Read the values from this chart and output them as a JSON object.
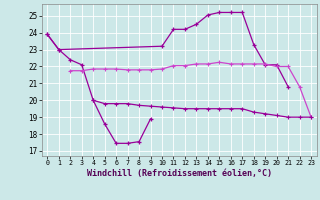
{
  "xlabel": "Windchill (Refroidissement éolien,°C)",
  "background_color": "#cce8e8",
  "color1": "#990099",
  "color2": "#cc44cc",
  "ylim": [
    16.7,
    25.7
  ],
  "xlim": [
    -0.5,
    23.5
  ],
  "yticks": [
    17,
    18,
    19,
    20,
    21,
    22,
    23,
    24,
    25
  ],
  "xticks": [
    0,
    1,
    2,
    3,
    4,
    5,
    6,
    7,
    8,
    9,
    10,
    11,
    12,
    13,
    14,
    15,
    16,
    17,
    18,
    19,
    20,
    21,
    22,
    23
  ],
  "wc_x": [
    0,
    1,
    2,
    3,
    4,
    5,
    6,
    7,
    8,
    9
  ],
  "wc_y": [
    23.9,
    23.0,
    22.4,
    22.1,
    20.0,
    18.6,
    17.45,
    17.45,
    17.55,
    18.9
  ],
  "temp_x": [
    0,
    1,
    10,
    11,
    12,
    13,
    14,
    15,
    16,
    17,
    18,
    19,
    20,
    21
  ],
  "temp_y": [
    23.9,
    23.0,
    23.2,
    24.2,
    24.2,
    24.5,
    25.05,
    25.2,
    25.2,
    25.2,
    23.3,
    22.1,
    22.1,
    20.8
  ],
  "mid_x": [
    2,
    3,
    4,
    5,
    6,
    7,
    8,
    9,
    10,
    11,
    12,
    13,
    14,
    15,
    16,
    17,
    18,
    19,
    20,
    21,
    22,
    23
  ],
  "mid_y": [
    21.75,
    21.75,
    21.85,
    21.85,
    21.85,
    21.8,
    21.8,
    21.8,
    21.85,
    22.05,
    22.05,
    22.15,
    22.15,
    22.25,
    22.15,
    22.15,
    22.15,
    22.15,
    22.0,
    22.0,
    20.8,
    19.0
  ],
  "bot_x": [
    4,
    5,
    6,
    7,
    8,
    9,
    10,
    11,
    12,
    13,
    14,
    15,
    16,
    17,
    18,
    19,
    20,
    21,
    22,
    23
  ],
  "bot_y": [
    20.0,
    19.8,
    19.8,
    19.8,
    19.7,
    19.65,
    19.6,
    19.55,
    19.5,
    19.5,
    19.5,
    19.5,
    19.5,
    19.5,
    19.3,
    19.2,
    19.1,
    19.0,
    19.0,
    19.0
  ]
}
